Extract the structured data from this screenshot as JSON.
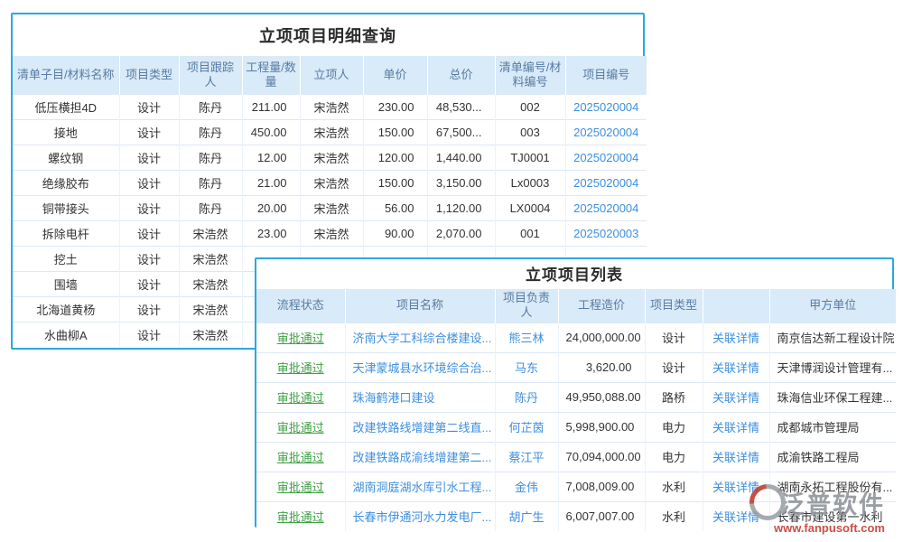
{
  "detail_window": {
    "title": "立项项目明细查询",
    "columns": [
      "清单子目/材料名称",
      "项目类型",
      "项目跟踪人",
      "工程量/数量",
      "立项人",
      "单价",
      "总价",
      "清单编号/材料编号",
      "项目编号"
    ],
    "rows": [
      {
        "name": "低压横担4D",
        "type": "设计",
        "tracker": "陈丹",
        "qty": "211.00",
        "initiator": "宋浩然",
        "unit_price": "230.00",
        "total_price": "48,530...",
        "code": "002",
        "project_no": "2025020004"
      },
      {
        "name": "接地",
        "type": "设计",
        "tracker": "陈丹",
        "qty": "450.00",
        "initiator": "宋浩然",
        "unit_price": "150.00",
        "total_price": "67,500...",
        "code": "003",
        "project_no": "2025020004"
      },
      {
        "name": "螺纹钢",
        "type": "设计",
        "tracker": "陈丹",
        "qty": "12.00",
        "initiator": "宋浩然",
        "unit_price": "120.00",
        "total_price": "1,440.00",
        "code": "TJ0001",
        "project_no": "2025020004"
      },
      {
        "name": "绝缘胶布",
        "type": "设计",
        "tracker": "陈丹",
        "qty": "21.00",
        "initiator": "宋浩然",
        "unit_price": "150.00",
        "total_price": "3,150.00",
        "code": "Lx0003",
        "project_no": "2025020004"
      },
      {
        "name": "铜带接头",
        "type": "设计",
        "tracker": "陈丹",
        "qty": "20.00",
        "initiator": "宋浩然",
        "unit_price": "56.00",
        "total_price": "1,120.00",
        "code": "LX0004",
        "project_no": "2025020004"
      },
      {
        "name": "拆除电杆",
        "type": "设计",
        "tracker": "宋浩然",
        "qty": "23.00",
        "initiator": "宋浩然",
        "unit_price": "90.00",
        "total_price": "2,070.00",
        "code": "001",
        "project_no": "2025020003"
      },
      {
        "name": "挖土",
        "type": "设计",
        "tracker": "宋浩然",
        "qty": "",
        "initiator": "",
        "unit_price": "",
        "total_price": "",
        "code": "",
        "project_no": ""
      },
      {
        "name": "围墙",
        "type": "设计",
        "tracker": "宋浩然",
        "qty": "",
        "initiator": "",
        "unit_price": "",
        "total_price": "",
        "code": "",
        "project_no": ""
      },
      {
        "name": "北海道黄杨",
        "type": "设计",
        "tracker": "宋浩然",
        "qty": "",
        "initiator": "",
        "unit_price": "",
        "total_price": "",
        "code": "",
        "project_no": ""
      },
      {
        "name": "水曲柳A",
        "type": "设计",
        "tracker": "宋浩然",
        "qty": "",
        "initiator": "",
        "unit_price": "",
        "total_price": "",
        "code": "",
        "project_no": ""
      }
    ]
  },
  "list_window": {
    "title": "立项项目列表",
    "columns": [
      "流程状态",
      "项目名称",
      "项目负责人",
      "工程造价",
      "项目类型",
      "",
      "甲方单位"
    ],
    "rows": [
      {
        "status": "审批通过",
        "name": "济南大学工科综合楼建设...",
        "manager": "熊三林",
        "cost": "24,000,000.00",
        "type": "设计",
        "detail": "关联详情",
        "client": "南京信达新工程设计院"
      },
      {
        "status": "审批通过",
        "name": "天津蒙城县水环境综合治...",
        "manager": "马东",
        "cost": "3,620.00",
        "type": "设计",
        "detail": "关联详情",
        "client": "天津博润设计管理有..."
      },
      {
        "status": "审批通过",
        "name": "珠海鹤港口建设",
        "manager": "陈丹",
        "cost": "49,950,088.00",
        "type": "路桥",
        "detail": "关联详情",
        "client": "珠海信业环保工程建..."
      },
      {
        "status": "审批通过",
        "name": "改建铁路线增建第二线直...",
        "manager": "何芷茵",
        "cost": "5,998,900.00",
        "type": "电力",
        "detail": "关联详情",
        "client": "成都城市管理局"
      },
      {
        "status": "审批通过",
        "name": "改建铁路成渝线增建第二...",
        "manager": "蔡江平",
        "cost": "70,094,000.00",
        "type": "电力",
        "detail": "关联详情",
        "client": "成渝铁路工程局"
      },
      {
        "status": "审批通过",
        "name": "湖南洞庭湖水库引水工程...",
        "manager": "金伟",
        "cost": "7,008,009.00",
        "type": "水利",
        "detail": "关联详情",
        "client": "湖南永拓工程股份有..."
      },
      {
        "status": "审批通过",
        "name": "长春市伊通河水力发电厂...",
        "manager": "胡广生",
        "cost": "6,007,007.00",
        "type": "水利",
        "detail": "关联详情",
        "client": "长春市建设第一水利"
      }
    ]
  },
  "watermark": {
    "brand": "泛普软件",
    "url": "www.fanpusoft.com"
  },
  "colors": {
    "accent_border": "#29a8df",
    "header_bg": "#d9eaf8",
    "header_text": "#587ca4",
    "link_blue": "#3d8fe0",
    "status_green": "#3fa144",
    "watermark_gray": "#8d9298",
    "watermark_red": "#c0392b"
  }
}
